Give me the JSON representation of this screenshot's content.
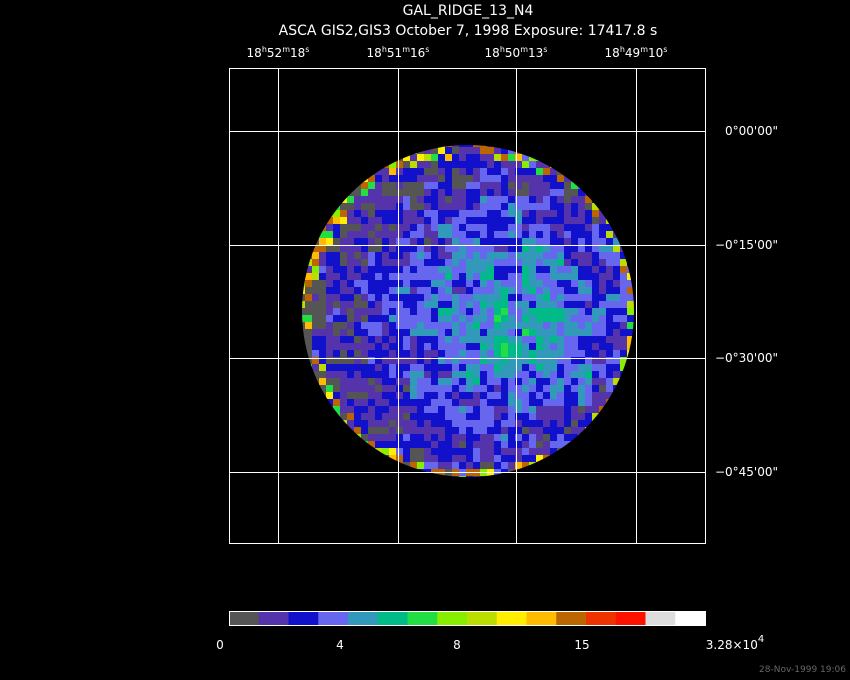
{
  "title": "GAL_RIDGE_13_N4",
  "subtitle": "ASCA GIS2,GIS3 October 7, 1998 Exposure: 17417.8 s",
  "ra_labels": [
    [
      "18",
      "h",
      "52",
      "m",
      "18",
      "s"
    ],
    [
      "18",
      "h",
      "51",
      "m",
      "16",
      "s"
    ],
    [
      "18",
      "h",
      "50",
      "m",
      "13",
      "s"
    ],
    [
      "18",
      "h",
      "49",
      "m",
      "10",
      "s"
    ]
  ],
  "dec_labels": [
    "0°00'00\"",
    "−0°15'00\"",
    "−0°30'00\"",
    "−0°45'00\""
  ],
  "colorbar_labels": [
    [
      "0"
    ],
    [
      "4"
    ],
    [
      "8"
    ],
    [
      "15"
    ],
    [
      "3.28×10",
      "4"
    ]
  ],
  "timestamp": "28-Nov-1999 19:06"
}
